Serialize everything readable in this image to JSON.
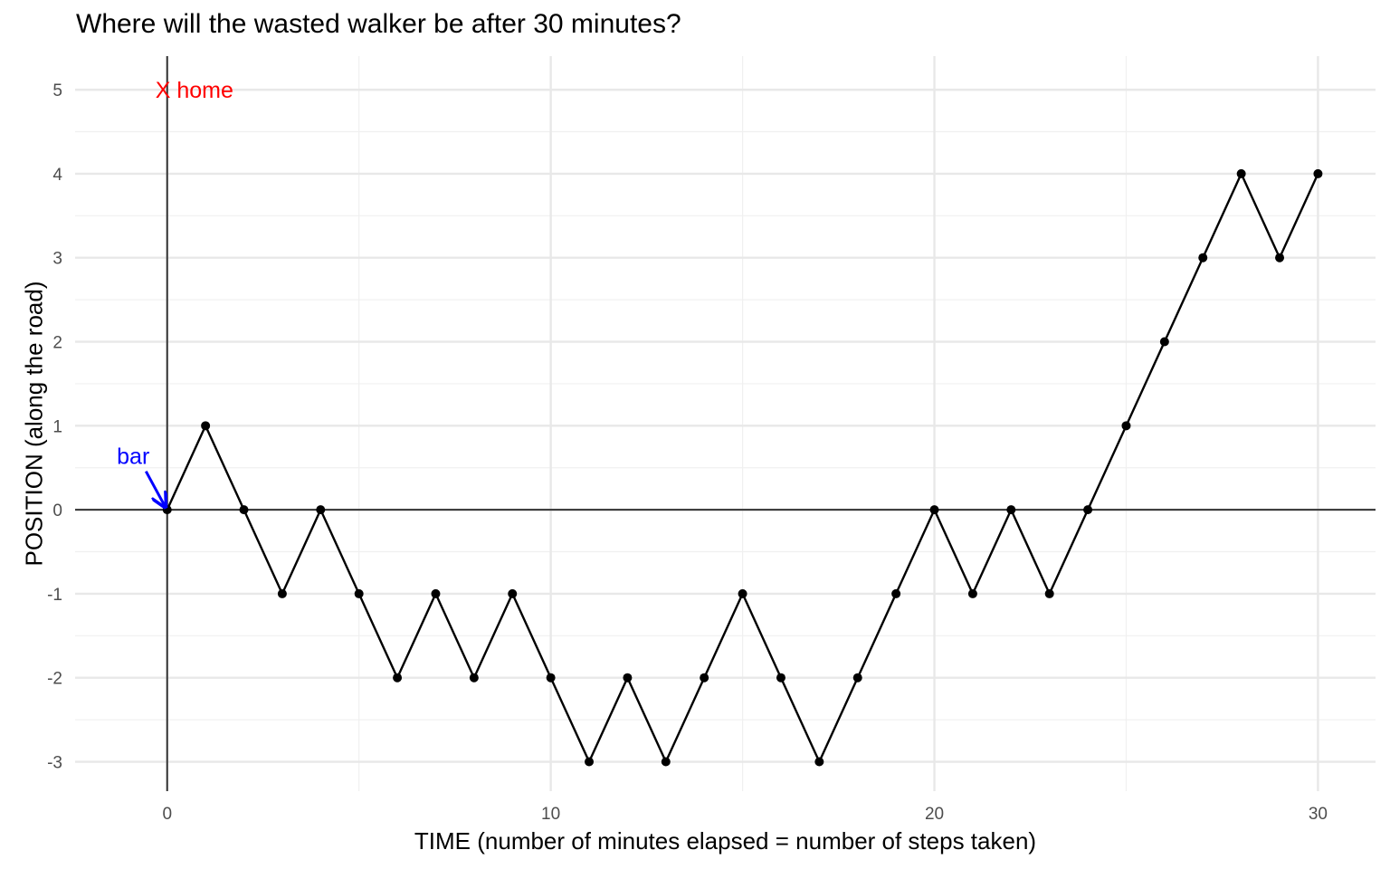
{
  "chart_data": {
    "type": "line",
    "title": "Where will the wasted walker be after 30 minutes?",
    "xlabel": "TIME (number of minutes elapsed =  number of steps taken)",
    "ylabel": "POSITION (along the road)",
    "xlim": [
      -2.4,
      31.5
    ],
    "ylim": [
      -3.35,
      5.4
    ],
    "x_ticks": [
      0,
      10,
      20,
      30
    ],
    "y_ticks": [
      -3,
      -2,
      -1,
      0,
      1,
      2,
      3,
      4,
      5
    ],
    "x_tick_labels": [
      "0",
      "10",
      "20",
      "30"
    ],
    "y_tick_labels": [
      "-3",
      "-2",
      "-1",
      "0",
      "1",
      "2",
      "3",
      "4",
      "5"
    ],
    "grid": true,
    "reference_lines": {
      "x": 0,
      "y": 0
    },
    "series": [
      {
        "x": [
          0,
          1,
          2,
          3,
          4,
          5,
          6,
          7,
          8,
          9,
          10,
          11,
          12,
          13,
          14,
          15,
          16,
          17,
          18,
          19,
          20,
          21,
          22,
          23,
          24,
          25,
          26,
          27,
          28,
          29,
          30
        ],
        "y": [
          0,
          1,
          0,
          -1,
          0,
          -1,
          -2,
          -1,
          -2,
          -1,
          -2,
          -3,
          -2,
          -3,
          -2,
          -1,
          -2,
          -3,
          -2,
          -1,
          0,
          -1,
          0,
          -1,
          0,
          1,
          2,
          3,
          4,
          3,
          4
        ],
        "color": "#000000"
      }
    ],
    "annotations": [
      {
        "text": "X home",
        "x": 0,
        "y": 5,
        "color": "#ff0000"
      },
      {
        "text": "bar",
        "x": -0.6,
        "y": 0.5,
        "color": "#0000ff",
        "arrow_to": {
          "x": 0,
          "y": 0
        }
      }
    ]
  }
}
